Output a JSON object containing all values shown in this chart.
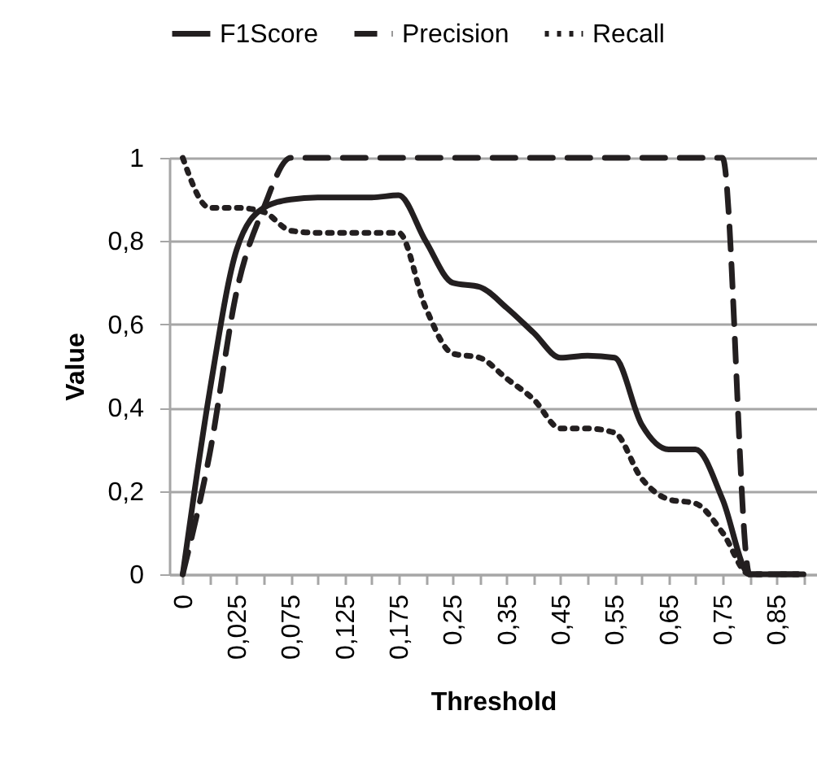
{
  "chart_data": {
    "type": "line",
    "xlabel": "Threshold",
    "ylabel": "Value",
    "categories": [
      "0",
      null,
      "0,025",
      null,
      "0,075",
      null,
      "0,125",
      null,
      "0,175",
      null,
      "0,25",
      null,
      "0,35",
      null,
      "0,45",
      null,
      "0,55",
      null,
      "0,65",
      null,
      "0,75",
      null,
      "0,85",
      null
    ],
    "series": [
      {
        "name": "F1Score",
        "color": "#231f20",
        "line_style": "solid",
        "values": [
          0,
          0.44,
          0.78,
          0.88,
          0.9,
          0.905,
          0.905,
          0.905,
          0.91,
          0.8,
          0.7,
          0.69,
          0.64,
          0.58,
          0.52,
          0.525,
          0.52,
          0.36,
          0.3,
          0.3,
          0.18,
          0,
          0,
          0
        ]
      },
      {
        "name": "Precision",
        "color": "#231f20",
        "line_style": "dashed",
        "values": [
          0,
          0.29,
          0.68,
          0.88,
          1,
          1,
          1,
          1,
          1,
          1,
          1,
          1,
          1,
          1,
          1,
          1,
          1,
          1,
          1,
          1,
          1,
          0,
          0,
          0
        ]
      },
      {
        "name": "Recall",
        "color": "#231f20",
        "line_style": "dotted",
        "values": [
          1,
          0.88,
          0.88,
          0.87,
          0.825,
          0.82,
          0.82,
          0.82,
          0.82,
          0.64,
          0.53,
          0.52,
          0.47,
          0.42,
          0.35,
          0.35,
          0.34,
          0.23,
          0.18,
          0.17,
          0.1,
          0,
          0,
          0
        ]
      }
    ],
    "ylim": [
      0,
      1
    ],
    "yticks": [
      0,
      {
        "value": 0.2,
        "label": "0,2"
      },
      {
        "value": 0.4,
        "label": "0,4"
      },
      {
        "value": 0.6,
        "label": "0,6"
      },
      {
        "value": 0.8,
        "label": "0,8"
      },
      1
    ],
    "grid": "y",
    "legend": "top"
  }
}
